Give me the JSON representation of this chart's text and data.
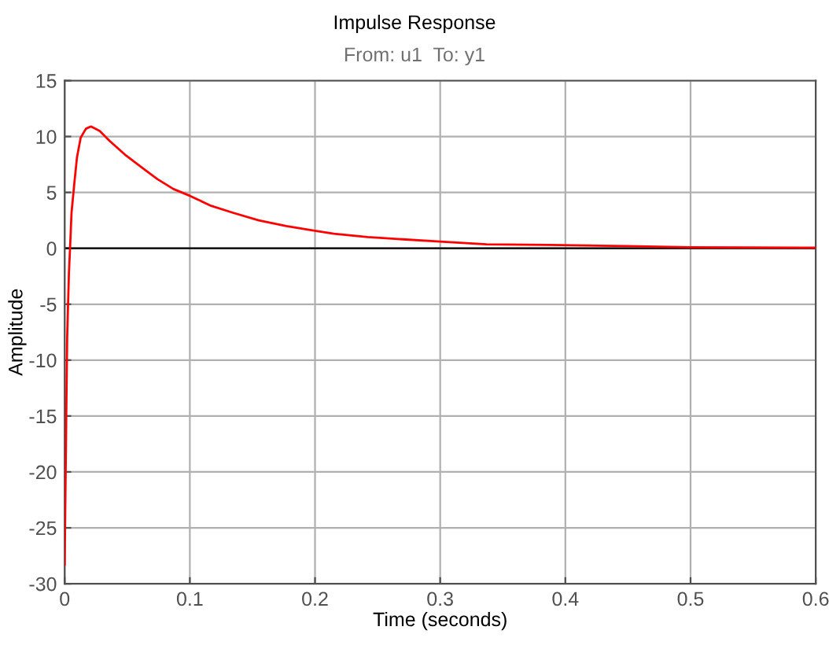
{
  "chart_data": {
    "type": "line",
    "title": "Impulse Response",
    "subtitle": "From: u1  To: y1",
    "xlabel": "Time (seconds)",
    "ylabel": "Amplitude",
    "series": [
      {
        "color": "#ff0000",
        "x": [
          0,
          0.0013,
          0.002,
          0.0034,
          0.0043,
          0.0055,
          0.0077,
          0.0098,
          0.0128,
          0.017,
          0.021,
          0.028,
          0.036,
          0.049,
          0.062,
          0.074,
          0.087,
          0.1,
          0.117,
          0.134,
          0.155,
          0.177,
          0.198,
          0.215,
          0.242,
          0.3,
          0.337,
          0.387,
          0.45,
          0.5,
          0.55,
          0.6
        ],
        "values": [
          -28.3,
          -14.7,
          -8.0,
          -2.2,
          0,
          3.2,
          5.8,
          8.1,
          9.9,
          10.7,
          10.9,
          10.5,
          9.6,
          8.3,
          7.2,
          6.2,
          5.3,
          4.7,
          3.8,
          3.2,
          2.5,
          2.0,
          1.6,
          1.3,
          1.0,
          0.6,
          0.35,
          0.3,
          0.2,
          0.1,
          0.08,
          0.05
        ]
      }
    ],
    "xlim": [
      0,
      0.6
    ],
    "xticks": [
      0,
      0.1,
      0.2,
      0.3,
      0.4,
      0.5,
      0.6
    ],
    "ylim": [
      -30,
      15
    ],
    "yticks": [
      -30,
      -25,
      -20,
      -15,
      -10,
      -5,
      0,
      5,
      10,
      15
    ],
    "ref_lines": [
      {
        "axis": "y",
        "value": 0,
        "color": "#000000"
      }
    ],
    "grid": true,
    "legend": false,
    "marker": "none",
    "line_style": "solid"
  }
}
